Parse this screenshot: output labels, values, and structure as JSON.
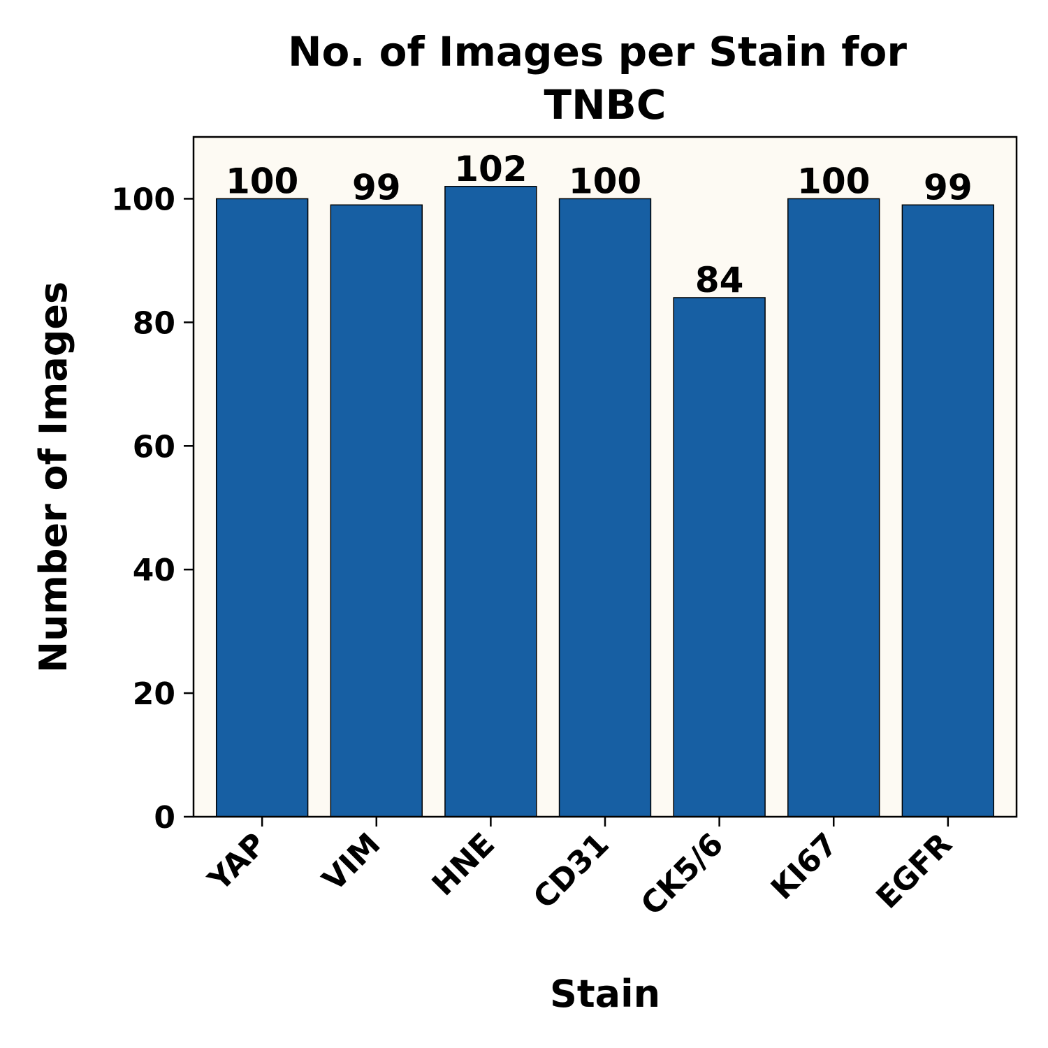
{
  "chart_data": {
    "type": "bar",
    "title_lines": [
      "No. of Images per Stain for",
      "TNBC"
    ],
    "xlabel": "Stain",
    "ylabel": "Number of Images",
    "categories": [
      "YAP",
      "VIM",
      "HNE",
      "CD31",
      "CK5/6",
      "KI67",
      "EGFR"
    ],
    "values": [
      100,
      99,
      102,
      100,
      84,
      100,
      99
    ],
    "ylim": [
      0,
      110
    ],
    "yticks": [
      0,
      20,
      40,
      60,
      80,
      100
    ],
    "bar_color": "#175fa3",
    "plot_background": "#fdfaf3",
    "grid": false,
    "legend": false
  }
}
